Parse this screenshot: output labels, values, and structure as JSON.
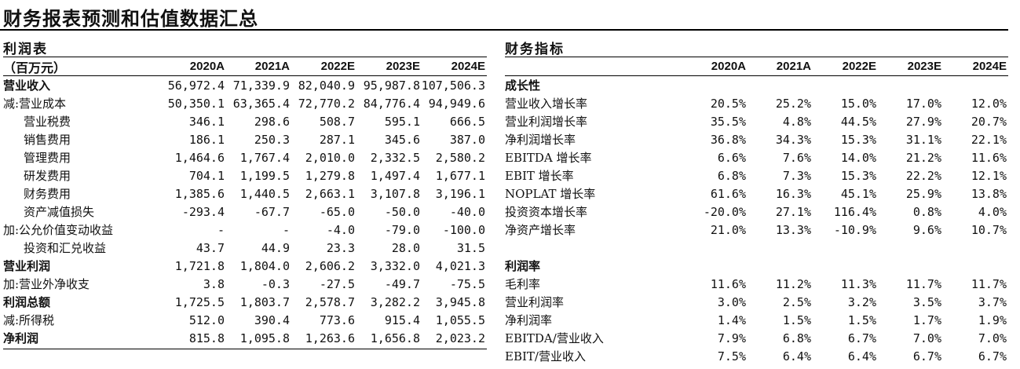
{
  "title": "财务报表预测和估值数据汇总",
  "income": {
    "heading": "利润表",
    "unit_label": "（百万元）",
    "years": [
      "2020A",
      "2021A",
      "2022E",
      "2023E",
      "2024E"
    ],
    "rows": [
      {
        "label": "营业收入",
        "bold": true,
        "indent": 0,
        "values": [
          "56,972.4",
          "71,339.9",
          "82,040.9",
          "95,987.8",
          "107,506.3"
        ]
      },
      {
        "label": "减:营业成本",
        "bold": false,
        "indent": 0,
        "values": [
          "50,350.1",
          "63,365.4",
          "72,770.2",
          "84,776.4",
          "94,949.6"
        ]
      },
      {
        "label": "营业税费",
        "bold": false,
        "indent": 1,
        "values": [
          "346.1",
          "298.6",
          "508.7",
          "595.1",
          "666.5"
        ]
      },
      {
        "label": "销售费用",
        "bold": false,
        "indent": 1,
        "values": [
          "186.1",
          "250.3",
          "287.1",
          "345.6",
          "387.0"
        ]
      },
      {
        "label": "管理费用",
        "bold": false,
        "indent": 1,
        "values": [
          "1,464.6",
          "1,767.4",
          "2,010.0",
          "2,332.5",
          "2,580.2"
        ]
      },
      {
        "label": "研发费用",
        "bold": false,
        "indent": 1,
        "values": [
          "704.1",
          "1,199.5",
          "1,279.8",
          "1,497.4",
          "1,677.1"
        ]
      },
      {
        "label": "财务费用",
        "bold": false,
        "indent": 1,
        "values": [
          "1,385.6",
          "1,440.5",
          "2,663.1",
          "3,107.8",
          "3,196.1"
        ]
      },
      {
        "label": "资产减值损失",
        "bold": false,
        "indent": 1,
        "values": [
          "-293.4",
          "-67.7",
          "-65.0",
          "-50.0",
          "-40.0"
        ]
      },
      {
        "label": "加:公允价值变动收益",
        "bold": false,
        "indent": 0,
        "values": [
          "-",
          "-",
          "-4.0",
          "-79.0",
          "-100.0"
        ]
      },
      {
        "label": "投资和汇兑收益",
        "bold": false,
        "indent": 1,
        "values": [
          "43.7",
          "44.9",
          "23.3",
          "28.0",
          "31.5"
        ]
      },
      {
        "label": "营业利润",
        "bold": true,
        "indent": 0,
        "values": [
          "1,721.8",
          "1,804.0",
          "2,606.2",
          "3,332.0",
          "4,021.3"
        ]
      },
      {
        "label": "加:营业外净收支",
        "bold": false,
        "indent": 0,
        "values": [
          "3.8",
          "-0.3",
          "-27.5",
          "-49.7",
          "-75.5"
        ]
      },
      {
        "label": "利润总额",
        "bold": true,
        "indent": 0,
        "values": [
          "1,725.5",
          "1,803.7",
          "2,578.7",
          "3,282.2",
          "3,945.8"
        ]
      },
      {
        "label": "减:所得税",
        "bold": false,
        "indent": 0,
        "values": [
          "512.0",
          "390.4",
          "773.6",
          "915.4",
          "1,055.5"
        ]
      },
      {
        "label": "净利润",
        "bold": true,
        "indent": 0,
        "values": [
          "815.8",
          "1,095.8",
          "1,263.6",
          "1,656.8",
          "2,023.2"
        ]
      }
    ]
  },
  "metrics": {
    "heading": "财务指标",
    "years": [
      "2020A",
      "2021A",
      "2022E",
      "2023E",
      "2024E"
    ],
    "rows": [
      {
        "label": "成长性",
        "bold": true,
        "values": [
          "",
          "",
          "",
          "",
          ""
        ]
      },
      {
        "label": "营业收入增长率",
        "bold": false,
        "values": [
          "20.5%",
          "25.2%",
          "15.0%",
          "17.0%",
          "12.0%"
        ]
      },
      {
        "label": "营业利润增长率",
        "bold": false,
        "values": [
          "35.5%",
          "4.8%",
          "44.5%",
          "27.9%",
          "20.7%"
        ]
      },
      {
        "label": "净利润增长率",
        "bold": false,
        "values": [
          "36.8%",
          "34.3%",
          "15.3%",
          "31.1%",
          "22.1%"
        ]
      },
      {
        "label": "EBITDA 增长率",
        "bold": false,
        "values": [
          "6.6%",
          "7.6%",
          "14.0%",
          "21.2%",
          "11.6%"
        ]
      },
      {
        "label": "EBIT 增长率",
        "bold": false,
        "values": [
          "6.8%",
          "7.3%",
          "15.3%",
          "22.2%",
          "12.1%"
        ]
      },
      {
        "label": "NOPLAT 增长率",
        "bold": false,
        "values": [
          "61.6%",
          "16.3%",
          "45.1%",
          "25.9%",
          "13.8%"
        ]
      },
      {
        "label": "投资资本增长率",
        "bold": false,
        "values": [
          "-20.0%",
          "27.1%",
          "116.4%",
          "0.8%",
          "4.0%"
        ]
      },
      {
        "label": "净资产增长率",
        "bold": false,
        "values": [
          "21.0%",
          "13.3%",
          "-10.9%",
          "9.6%",
          "10.7%"
        ]
      },
      {
        "label": "",
        "bold": false,
        "values": [
          "",
          "",
          "",
          "",
          ""
        ]
      },
      {
        "label": "利润率",
        "bold": true,
        "values": [
          "",
          "",
          "",
          "",
          ""
        ]
      },
      {
        "label": "毛利率",
        "bold": false,
        "values": [
          "11.6%",
          "11.2%",
          "11.3%",
          "11.7%",
          "11.7%"
        ]
      },
      {
        "label": "营业利润率",
        "bold": false,
        "values": [
          "3.0%",
          "2.5%",
          "3.2%",
          "3.5%",
          "3.7%"
        ]
      },
      {
        "label": "净利润率",
        "bold": false,
        "values": [
          "1.4%",
          "1.5%",
          "1.5%",
          "1.7%",
          "1.9%"
        ]
      },
      {
        "label": "EBITDA/营业收入",
        "bold": false,
        "values": [
          "7.9%",
          "6.8%",
          "6.7%",
          "7.0%",
          "7.0%"
        ]
      },
      {
        "label": "EBIT/营业收入",
        "bold": false,
        "values": [
          "7.5%",
          "6.4%",
          "6.4%",
          "6.7%",
          "6.7%"
        ]
      }
    ]
  }
}
